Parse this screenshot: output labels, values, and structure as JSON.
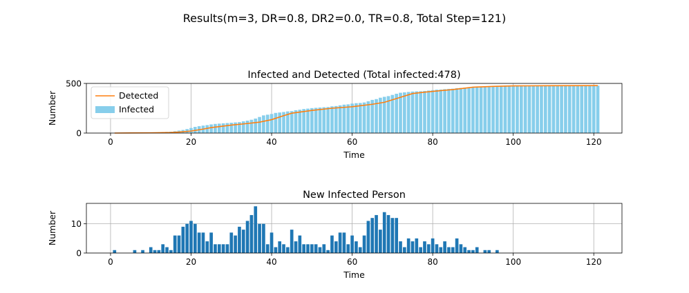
{
  "suptitle": "Results(m=3, DR=0.8, DR2=0.0, TR=0.8, Total Step=121)",
  "colors": {
    "infected": "#87ceeb",
    "detected": "#ff7f0e",
    "new_infected": "#1f77b4",
    "grid": "#b0b0b0"
  },
  "chart_data": [
    {
      "type": "bar",
      "title": "Infected and Detected (Total infected:478)",
      "xlabel": "Time",
      "ylabel": "Number",
      "xlim": [
        -6,
        127
      ],
      "ylim": [
        0,
        500
      ],
      "xticks": [
        0,
        20,
        40,
        60,
        80,
        100,
        120
      ],
      "yticks": [
        0,
        500
      ],
      "grid": true,
      "legend_position": "upper-left",
      "series": [
        {
          "name": "Infected",
          "kind": "bar",
          "x_start": 1,
          "values": [
            1,
            1,
            1,
            1,
            1,
            2,
            2,
            3,
            3,
            5,
            6,
            7,
            10,
            12,
            14,
            19,
            25,
            31,
            40,
            51,
            62,
            69,
            75,
            80,
            87,
            92,
            95,
            98,
            101,
            104,
            107,
            110,
            118,
            125,
            134,
            146,
            162,
            178,
            185,
            192,
            203,
            207,
            212,
            218,
            221,
            230,
            235,
            242,
            246,
            251,
            254,
            257,
            260,
            262,
            269,
            272,
            279,
            286,
            289,
            297,
            301,
            303,
            308,
            320,
            334,
            342,
            356,
            365,
            372,
            384,
            396,
            406,
            410,
            414,
            418,
            420,
            421,
            424,
            428,
            432,
            437,
            438,
            442,
            445,
            447,
            452,
            455,
            458,
            460,
            462,
            465,
            467,
            469,
            471,
            473,
            474,
            475,
            477,
            477,
            477,
            477,
            478,
            478,
            478,
            478,
            478,
            478,
            478,
            478,
            478,
            478,
            478,
            478,
            478,
            478,
            478,
            478,
            478,
            478,
            478,
            478
          ]
        },
        {
          "name": "Detected",
          "kind": "line",
          "x": [
            1,
            5,
            10,
            15,
            17,
            20,
            23,
            25,
            28,
            30,
            33,
            37,
            40,
            43,
            45,
            50,
            55,
            60,
            65,
            68,
            72,
            75,
            78,
            80,
            85,
            90,
            95,
            100,
            110,
            121
          ],
          "values": [
            0,
            1,
            2,
            6,
            10,
            20,
            40,
            55,
            70,
            80,
            92,
            110,
            135,
            175,
            200,
            228,
            250,
            265,
            290,
            310,
            360,
            398,
            412,
            420,
            438,
            462,
            470,
            475,
            477,
            478
          ]
        }
      ]
    },
    {
      "type": "bar",
      "title": "New Infected Person",
      "xlabel": "Time",
      "ylabel": "Number",
      "xlim": [
        -6,
        127
      ],
      "ylim": [
        0,
        17
      ],
      "xticks": [
        0,
        20,
        40,
        60,
        80,
        100,
        120
      ],
      "yticks": [
        0,
        10
      ],
      "grid": true,
      "series": [
        {
          "name": "",
          "kind": "bar",
          "x_start": 1,
          "values": [
            1,
            0,
            0,
            0,
            0,
            1,
            0,
            1,
            0,
            2,
            1,
            1,
            3,
            2,
            1,
            6,
            6,
            9,
            10,
            11,
            10,
            7,
            7,
            4,
            7,
            3,
            3,
            3,
            3,
            7,
            6,
            9,
            8,
            11,
            13,
            16,
            10,
            10,
            3,
            7,
            2,
            4,
            3,
            2,
            8,
            4,
            6,
            3,
            3,
            3,
            3,
            2,
            3,
            1,
            6,
            4,
            7,
            7,
            3,
            6,
            4,
            2,
            6,
            11,
            12,
            13,
            8,
            14,
            13,
            12,
            12,
            4,
            2,
            5,
            4,
            5,
            2,
            4,
            3,
            5,
            3,
            2,
            4,
            2,
            2,
            5,
            3,
            2,
            1,
            1,
            2,
            0,
            1,
            1,
            0,
            1,
            0
          ]
        }
      ]
    }
  ]
}
